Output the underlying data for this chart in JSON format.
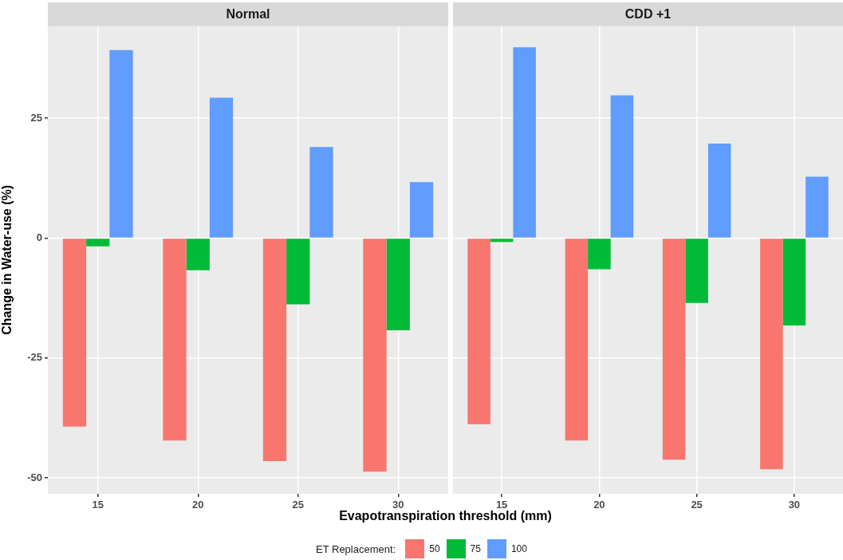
{
  "chart_data": [
    {
      "type": "bar",
      "title": "Normal",
      "ylabel": "Change in Water-use (%)",
      "xlabel": "Evapotranspiration threshold (mm)",
      "legend_title": "ET Replacement:",
      "legend": "bottom",
      "grid": true,
      "categories": [
        "15",
        "20",
        "25",
        "30"
      ],
      "series": [
        {
          "name": "50",
          "color": "#f8766d",
          "values": [
            -39.3,
            -42.2,
            -46.5,
            -48.7
          ]
        },
        {
          "name": "75",
          "color": "#00ba38",
          "values": [
            -1.7,
            -6.7,
            -13.8,
            -19.2
          ]
        },
        {
          "name": "100",
          "color": "#619cff",
          "values": [
            39.2,
            29.3,
            19.0,
            11.7
          ]
        }
      ],
      "ylim": [
        -53.3,
        44.2
      ],
      "yticks": [
        -50,
        -25,
        0,
        25
      ]
    },
    {
      "type": "bar",
      "title": "CDD +1",
      "grid": true,
      "tick_labels": "x",
      "categories": [
        "15",
        "20",
        "25",
        "30"
      ],
      "series": [
        {
          "color": "#f8766d",
          "values": [
            -38.8,
            -42.2,
            -46.2,
            -48.2
          ]
        },
        {
          "color": "#00ba38",
          "values": [
            -0.8,
            -6.5,
            -13.5,
            -18.2
          ]
        },
        {
          "color": "#619cff",
          "values": [
            39.8,
            29.8,
            19.7,
            12.8
          ]
        }
      ],
      "ylim": [
        -53.3,
        44.2
      ],
      "yticks": [
        -50,
        -25,
        0,
        25
      ]
    }
  ]
}
